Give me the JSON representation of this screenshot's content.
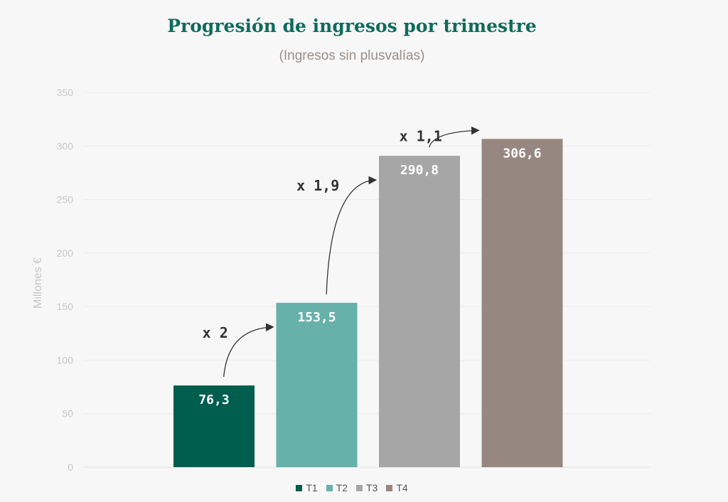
{
  "chart_data": {
    "type": "bar",
    "title": "Progresión de ingresos por trimestre",
    "subtitle": "(Ingresos sin plusvalías)",
    "ylabel": "Millones €",
    "xlabel": "",
    "ylim": [
      0,
      350
    ],
    "yticks": [
      0,
      50,
      100,
      150,
      200,
      250,
      300,
      350
    ],
    "grid": true,
    "legend_position": "bottom",
    "categories": [
      "T1",
      "T2",
      "T3",
      "T4"
    ],
    "values": [
      76.3,
      153.5,
      290.8,
      306.6
    ],
    "value_labels": [
      "76,3",
      "153,5",
      "290,8",
      "306,6"
    ],
    "colors": [
      "#005e4e",
      "#66b1aa",
      "#a6a6a6",
      "#968880"
    ],
    "annotations": [
      {
        "text": "x 2",
        "from": "T1",
        "to": "T2"
      },
      {
        "text": "x 1,9",
        "from": "T2",
        "to": "T3"
      },
      {
        "text": "x 1,1",
        "from": "T3",
        "to": "T4"
      }
    ]
  }
}
